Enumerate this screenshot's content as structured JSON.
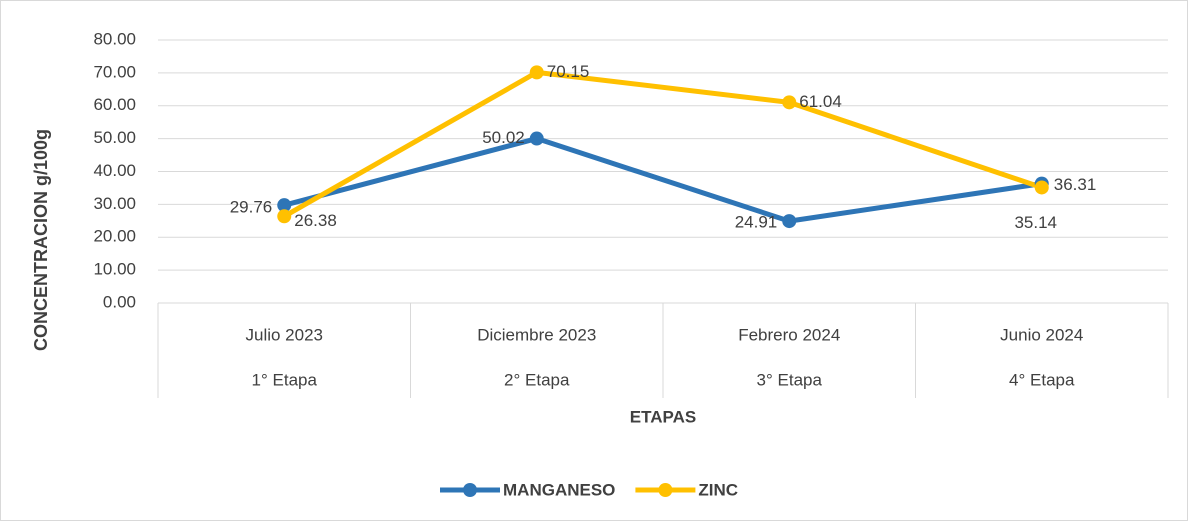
{
  "chart_data": {
    "type": "line",
    "categories": [
      "Julio 2023",
      "Diciembre 2023",
      "Febrero 2024",
      "Junio 2024"
    ],
    "category_groups": [
      "1° Etapa",
      "2° Etapa",
      "3° Etapa",
      "4° Etapa"
    ],
    "x_label": "ETAPAS",
    "y_label": "CONCENTRACION g/100g",
    "ylim": [
      0,
      80
    ],
    "yticks": [
      {
        "value": 0,
        "label": "0.00"
      },
      {
        "value": 10,
        "label": "10.00"
      },
      {
        "value": 20,
        "label": "20.00"
      },
      {
        "value": 30,
        "label": "30.00"
      },
      {
        "value": 40,
        "label": "40.00"
      },
      {
        "value": 50,
        "label": "50.00"
      },
      {
        "value": 60,
        "label": "60.00"
      },
      {
        "value": 70,
        "label": "70.00"
      },
      {
        "value": 80,
        "label": "80.00"
      }
    ],
    "grid": true,
    "legend": "bottom",
    "series": [
      {
        "name": "MANGANESO",
        "color": "#2e75b6",
        "values": [
          29.76,
          50.02,
          24.91,
          36.31
        ]
      },
      {
        "name": "ZINC",
        "color": "#ffc000",
        "values": [
          26.38,
          70.15,
          61.04,
          35.14
        ]
      }
    ]
  }
}
